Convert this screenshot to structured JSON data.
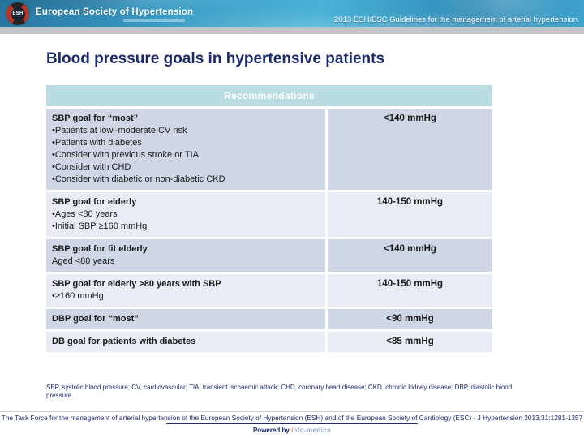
{
  "header": {
    "logo_text": "ESH",
    "org_name": "European Society of Hypertension",
    "guideline_title": "2013 ESH/ESC Guidelines for the management of arterial hypertension"
  },
  "slide": {
    "title": "Blood pressure goals in hypertensive patients"
  },
  "table": {
    "header": "Recommendations",
    "rows": [
      {
        "goal": "SBP goal for “most”",
        "bullets": [
          "Patients at low–moderate CV risk",
          "Patients with diabetes",
          "Consider with previous stroke or TIA",
          "Consider with CHD",
          "Consider with diabetic or non-diabetic CKD"
        ],
        "value": "<140 mmHg",
        "shade": "dark"
      },
      {
        "goal": "SBP goal for elderly",
        "bullets": [
          "Ages <80 years",
          "Initial SBP ≥160 mmHg"
        ],
        "value": "140-150 mmHg",
        "shade": "light"
      },
      {
        "goal": "SBP goal for fit elderly",
        "plain": [
          "Aged <80 years"
        ],
        "value": "<140 mmHg",
        "shade": "dark"
      },
      {
        "goal": "SBP goal for elderly >80 years with SBP",
        "bullets": [
          "≥160 mmHg"
        ],
        "value": "140-150 mmHg",
        "shade": "light"
      },
      {
        "goal": "DBP goal for “most”",
        "value": "<90 mmHg",
        "shade": "dark"
      },
      {
        "goal": "DB goal for patients with diabetes",
        "value": "<85 mmHg",
        "shade": "light"
      }
    ]
  },
  "footnote": "SBP, systolic blood pressure; CV, cardiovascular; TIA, transient ischaemic attack; CHD, coronary heart disease; CKD, chronic kidney disease; DBP, diastolic blood pressure.",
  "footer": {
    "citation": "The Task Force for the management of arterial hypertension of the European Society of Hypertension (ESH) and of the European Society of Cardiology (ESC) - J Hypertension 2013;31:1281-1357",
    "powered_by_label": "Powered by",
    "powered_by_brand_tick": "i",
    "powered_by_brand": "nfo-medica"
  },
  "colors": {
    "navy": "#1b2a6b",
    "teal-header": "#badde1",
    "row-dark": "#cfd6e5",
    "row-light": "#e9ecf4",
    "gray-strip": "#c2c5c7",
    "cell-text": "#1a1a1a",
    "brand-light": "#96aacd",
    "brand-tick": "#e8903a"
  }
}
